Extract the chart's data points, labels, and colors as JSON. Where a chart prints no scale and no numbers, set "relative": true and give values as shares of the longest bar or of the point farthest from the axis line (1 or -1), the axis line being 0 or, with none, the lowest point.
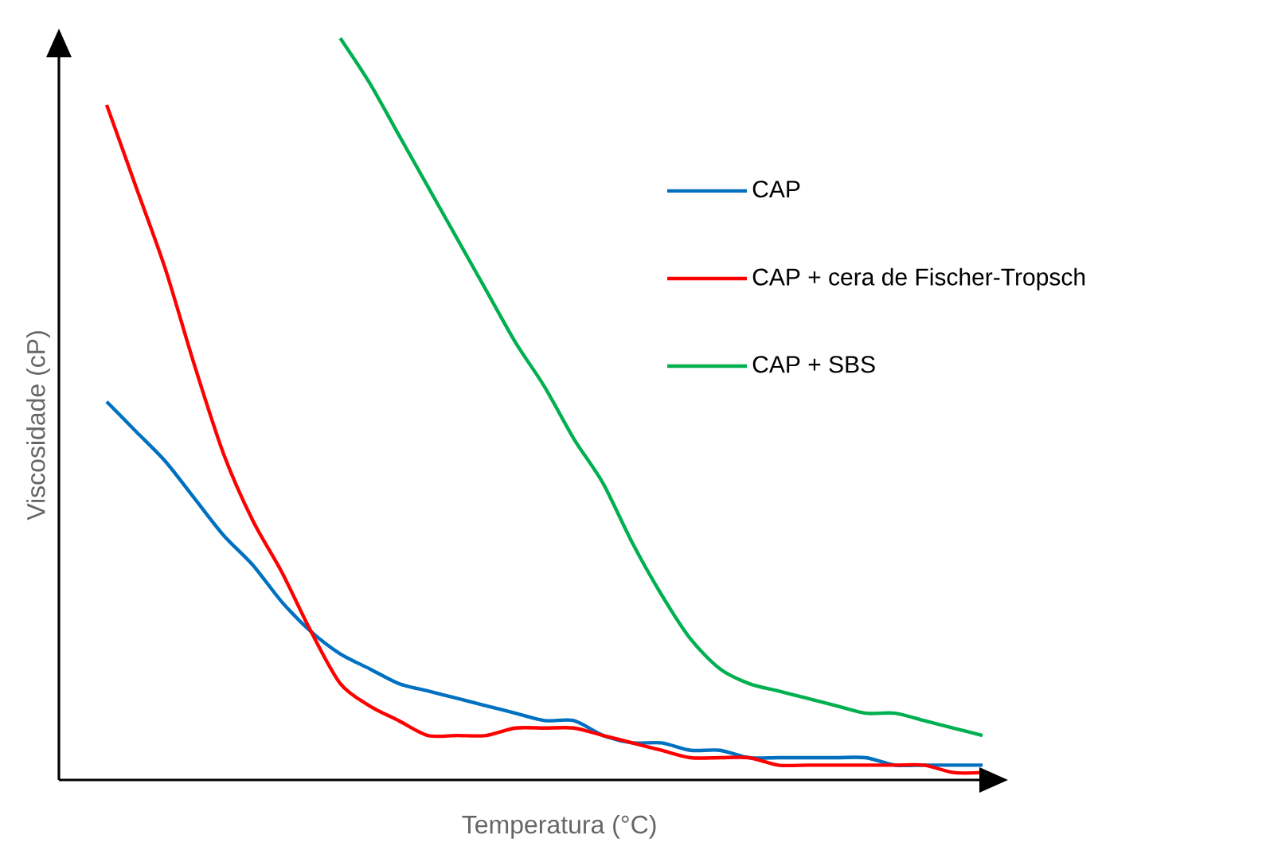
{
  "chart_data": {
    "type": "line",
    "relative": true,
    "xlabel": "Temperatura (°C)",
    "ylabel": "Viscosidade (cP)",
    "legend": "right",
    "categories": [
      null,
      null,
      null,
      null,
      null,
      null,
      null,
      null,
      null,
      null,
      null,
      null,
      null,
      null,
      null,
      null,
      null,
      null,
      null,
      null,
      null,
      null,
      null,
      null,
      null,
      null,
      null,
      null,
      null,
      null,
      null
    ],
    "series": [
      {
        "name": "CAP",
        "color": "#0070c0",
        "values": [
          0.51,
          0.47,
          0.43,
          0.38,
          0.33,
          0.29,
          0.24,
          0.2,
          0.17,
          0.15,
          0.13,
          0.12,
          0.11,
          0.1,
          0.09,
          0.08,
          0.08,
          0.06,
          0.05,
          0.05,
          0.04,
          0.04,
          0.03,
          0.03,
          0.03,
          0.03,
          0.03,
          0.02,
          0.02,
          0.02,
          0.02
        ]
      },
      {
        "name": "CAP + cera de Fischer-Tropsch",
        "color": "#ff0000",
        "values": [
          0.91,
          0.8,
          0.69,
          0.56,
          0.44,
          0.35,
          0.28,
          0.2,
          0.13,
          0.1,
          0.08,
          0.06,
          0.06,
          0.06,
          0.07,
          0.07,
          0.07,
          0.06,
          0.05,
          0.04,
          0.03,
          0.03,
          0.03,
          0.02,
          0.02,
          0.02,
          0.02,
          0.02,
          0.02,
          0.01,
          0.01
        ]
      },
      {
        "name": "CAP + SBS",
        "color": "#00b050",
        "values": [
          null,
          null,
          null,
          null,
          null,
          null,
          null,
          null,
          1.0,
          0.94,
          0.87,
          0.8,
          0.73,
          0.66,
          0.59,
          0.53,
          0.46,
          0.4,
          0.32,
          0.25,
          0.19,
          0.15,
          0.13,
          0.12,
          0.11,
          0.1,
          0.09,
          0.09,
          0.08,
          0.07,
          0.06
        ]
      }
    ]
  }
}
